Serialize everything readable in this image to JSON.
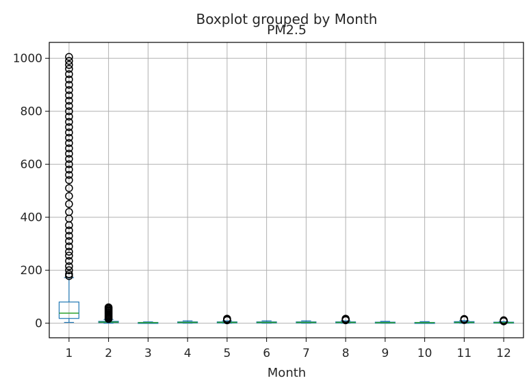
{
  "chart_data": {
    "type": "boxplot",
    "suptitle": "Boxplot grouped by Month",
    "title": "PM2.5",
    "xlabel": "Month",
    "ylabel": "",
    "categories": [
      "1",
      "2",
      "3",
      "4",
      "5",
      "6",
      "7",
      "8",
      "9",
      "10",
      "11",
      "12"
    ],
    "yticks": [
      0,
      200,
      400,
      600,
      800,
      1000
    ],
    "ylim": [
      -55,
      1060
    ],
    "grid": true,
    "colors": {
      "box": "#1f77b4",
      "median": "#2ca02c",
      "flier": "#000000",
      "grid": "#b0b0b0"
    },
    "boxes": [
      {
        "category": "1",
        "whislo": 3,
        "q1": 18,
        "med": 38,
        "q3": 80,
        "whishi": 172,
        "fliers": [
          178,
          185,
          200,
          215,
          235,
          255,
          270,
          290,
          310,
          330,
          350,
          370,
          395,
          420,
          450,
          480,
          510,
          540,
          560,
          580,
          600,
          620,
          640,
          660,
          680,
          700,
          720,
          740,
          760,
          780,
          800,
          820,
          840,
          860,
          880,
          900,
          920,
          940,
          960,
          975,
          990,
          1005
        ]
      },
      {
        "category": "2",
        "whislo": 0,
        "q1": 2,
        "med": 4,
        "q3": 7,
        "whishi": 14,
        "fliers": [
          16,
          20,
          24,
          28,
          32,
          36,
          40,
          44,
          48,
          52,
          56,
          60
        ]
      },
      {
        "category": "3",
        "whislo": 0,
        "q1": 1,
        "med": 2,
        "q3": 3,
        "whishi": 5,
        "fliers": []
      },
      {
        "category": "4",
        "whislo": 0,
        "q1": 1,
        "med": 3,
        "q3": 5,
        "whishi": 9,
        "fliers": []
      },
      {
        "category": "5",
        "whislo": 0,
        "q1": 1,
        "med": 3,
        "q3": 5,
        "whishi": 9,
        "fliers": [
          11,
          13,
          15,
          17
        ]
      },
      {
        "category": "6",
        "whislo": 0,
        "q1": 1,
        "med": 3,
        "q3": 5,
        "whishi": 9,
        "fliers": []
      },
      {
        "category": "7",
        "whislo": 0,
        "q1": 1,
        "med": 3,
        "q3": 5,
        "whishi": 9,
        "fliers": []
      },
      {
        "category": "8",
        "whislo": 0,
        "q1": 1,
        "med": 3,
        "q3": 5,
        "whishi": 9,
        "fliers": [
          11,
          13,
          15,
          17
        ]
      },
      {
        "category": "9",
        "whislo": 0,
        "q1": 1,
        "med": 2,
        "q3": 4,
        "whishi": 7,
        "fliers": []
      },
      {
        "category": "10",
        "whislo": 0,
        "q1": 1,
        "med": 2,
        "q3": 3,
        "whishi": 6,
        "fliers": []
      },
      {
        "category": "11",
        "whislo": 0,
        "q1": 1,
        "med": 3,
        "q3": 6,
        "whishi": 10,
        "fliers": [
          12,
          14,
          16
        ]
      },
      {
        "category": "12",
        "whislo": 0,
        "q1": 1,
        "med": 2,
        "q3": 4,
        "whishi": 6,
        "fliers": [
          7,
          9,
          11
        ]
      }
    ]
  }
}
